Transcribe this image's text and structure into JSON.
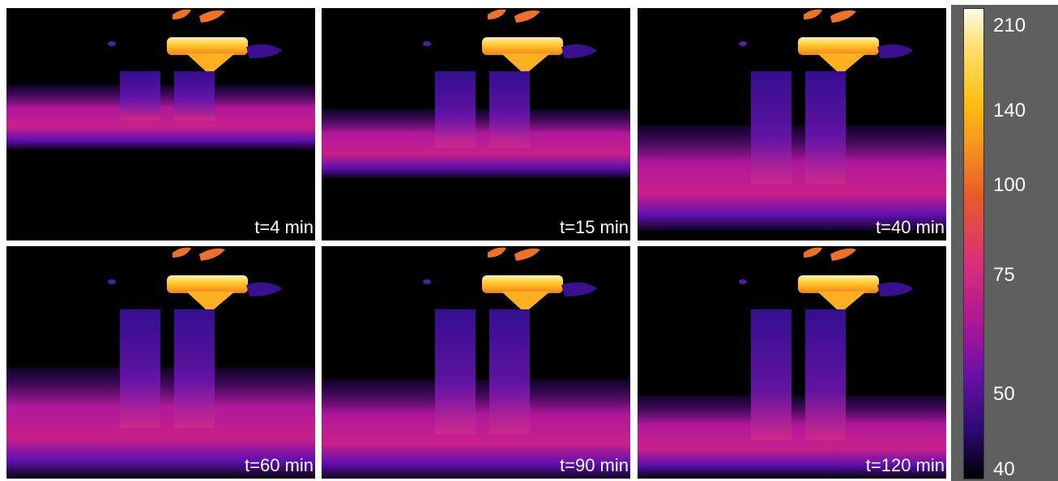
{
  "panels": [
    {
      "label": "t=4 min"
    },
    {
      "label": "t=15 min"
    },
    {
      "label": "t=40 min"
    },
    {
      "label": "t=60 min"
    },
    {
      "label": "t=90 min"
    },
    {
      "label": "t=120 min"
    }
  ],
  "colorbar": {
    "ticks": [
      210,
      140,
      100,
      75,
      50,
      40
    ]
  }
}
